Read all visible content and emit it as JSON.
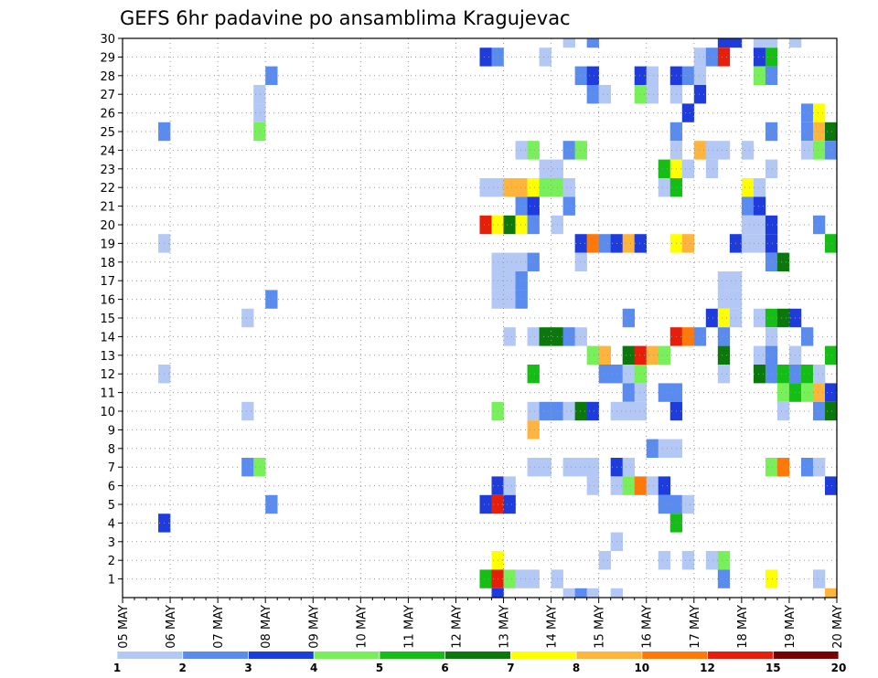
{
  "chart_data": {
    "type": "heatmap",
    "title": "GEFS 6hr padavine po ansamblima Kragujevac",
    "x_tick_labels": [
      "05 MAY",
      "06 MAY",
      "07 MAY",
      "08 MAY",
      "09 MAY",
      "10 MAY",
      "11 MAY",
      "12 MAY",
      "13 MAY",
      "14 MAY",
      "15 MAY",
      "16 MAY",
      "17 MAY",
      "18 MAY",
      "19 MAY",
      "20 MAY"
    ],
    "x_step": "6hr",
    "x_columns": 60,
    "y_tick_labels": [
      "1",
      "2",
      "3",
      "4",
      "5",
      "6",
      "7",
      "8",
      "9",
      "10",
      "11",
      "12",
      "13",
      "14",
      "15",
      "16",
      "17",
      "18",
      "19",
      "20",
      "21",
      "22",
      "23",
      "24",
      "25",
      "26",
      "27",
      "28",
      "29",
      "30"
    ],
    "ylim": [
      0,
      30
    ],
    "grid": true,
    "legend": {
      "placement": "bottom",
      "boundaries": [
        "1",
        "2",
        "3",
        "4",
        "5",
        "6",
        "7",
        "8",
        "10",
        "12",
        "15",
        "20"
      ],
      "colors": [
        "#b4c8f5",
        "#5a8cf0",
        "#1e3cdc",
        "#78f05a",
        "#14be14",
        "#0a780a",
        "#ffff00",
        "#ffb43c",
        "#ff780a",
        "#e61e0a",
        "#780000"
      ]
    },
    "cells": [
      {
        "m": 30,
        "c": [
          [
            37,
            1
          ],
          [
            39,
            2
          ],
          [
            50,
            3
          ],
          [
            51,
            3
          ],
          [
            53,
            1
          ],
          [
            54,
            1
          ],
          [
            56,
            1
          ]
        ]
      },
      {
        "m": 29,
        "c": [
          [
            30,
            3
          ],
          [
            31,
            2
          ],
          [
            35,
            1
          ],
          [
            48,
            1
          ],
          [
            49,
            2
          ],
          [
            50,
            10
          ],
          [
            53,
            3
          ],
          [
            54,
            5
          ]
        ]
      },
      {
        "m": 28,
        "c": [
          [
            12,
            2
          ],
          [
            38,
            2
          ],
          [
            39,
            3
          ],
          [
            43,
            3
          ],
          [
            44,
            1
          ],
          [
            46,
            3
          ],
          [
            47,
            2
          ],
          [
            48,
            1
          ],
          [
            53,
            4
          ],
          [
            54,
            2
          ]
        ]
      },
      {
        "m": 27,
        "c": [
          [
            11,
            1
          ],
          [
            39,
            2
          ],
          [
            40,
            1
          ],
          [
            43,
            4
          ],
          [
            44,
            1
          ],
          [
            46,
            1
          ],
          [
            48,
            3
          ]
        ]
      },
      {
        "m": 26,
        "c": [
          [
            11,
            1
          ],
          [
            47,
            3
          ],
          [
            57,
            2
          ],
          [
            58,
            7
          ]
        ]
      },
      {
        "m": 25,
        "c": [
          [
            3,
            2
          ],
          [
            11,
            4
          ],
          [
            46,
            2
          ],
          [
            54,
            2
          ],
          [
            57,
            2
          ],
          [
            58,
            8
          ],
          [
            59,
            6
          ]
        ]
      },
      {
        "m": 24,
        "c": [
          [
            33,
            1
          ],
          [
            34,
            4
          ],
          [
            37,
            2
          ],
          [
            38,
            4
          ],
          [
            46,
            1
          ],
          [
            48,
            8
          ],
          [
            49,
            1
          ],
          [
            50,
            1
          ],
          [
            52,
            1
          ],
          [
            57,
            1
          ],
          [
            58,
            4
          ],
          [
            59,
            2
          ]
        ]
      },
      {
        "m": 23,
        "c": [
          [
            35,
            1
          ],
          [
            36,
            1
          ],
          [
            45,
            5
          ],
          [
            46,
            7
          ],
          [
            47,
            1
          ],
          [
            49,
            1
          ],
          [
            54,
            1
          ]
        ]
      },
      {
        "m": 22,
        "c": [
          [
            30,
            1
          ],
          [
            31,
            1
          ],
          [
            32,
            8
          ],
          [
            33,
            8
          ],
          [
            34,
            7
          ],
          [
            35,
            4
          ],
          [
            36,
            4
          ],
          [
            37,
            1
          ],
          [
            45,
            1
          ],
          [
            46,
            5
          ],
          [
            52,
            7
          ],
          [
            53,
            1
          ]
        ]
      },
      {
        "m": 21,
        "c": [
          [
            33,
            2
          ],
          [
            34,
            3
          ],
          [
            37,
            2
          ],
          [
            52,
            2
          ],
          [
            53,
            3
          ]
        ]
      },
      {
        "m": 20,
        "c": [
          [
            30,
            10
          ],
          [
            31,
            7
          ],
          [
            32,
            6
          ],
          [
            33,
            7
          ],
          [
            34,
            2
          ],
          [
            36,
            1
          ],
          [
            52,
            1
          ],
          [
            53,
            1
          ],
          [
            54,
            3
          ],
          [
            58,
            2
          ]
        ]
      },
      {
        "m": 19,
        "c": [
          [
            3,
            1
          ],
          [
            38,
            3
          ],
          [
            39,
            9
          ],
          [
            40,
            2
          ],
          [
            41,
            3
          ],
          [
            42,
            8
          ],
          [
            43,
            3
          ],
          [
            46,
            7
          ],
          [
            47,
            8
          ],
          [
            51,
            3
          ],
          [
            52,
            1
          ],
          [
            53,
            1
          ],
          [
            54,
            3
          ],
          [
            59,
            5
          ]
        ]
      },
      {
        "m": 18,
        "c": [
          [
            31,
            1
          ],
          [
            32,
            1
          ],
          [
            33,
            1
          ],
          [
            34,
            2
          ],
          [
            38,
            1
          ],
          [
            54,
            2
          ],
          [
            55,
            6
          ]
        ]
      },
      {
        "m": 17,
        "c": [
          [
            31,
            1
          ],
          [
            32,
            1
          ],
          [
            33,
            2
          ],
          [
            50,
            1
          ],
          [
            51,
            1
          ]
        ]
      },
      {
        "m": 16,
        "c": [
          [
            12,
            2
          ],
          [
            31,
            1
          ],
          [
            32,
            1
          ],
          [
            33,
            2
          ],
          [
            50,
            1
          ],
          [
            51,
            1
          ]
        ]
      },
      {
        "m": 15,
        "c": [
          [
            10,
            1
          ],
          [
            42,
            2
          ],
          [
            49,
            3
          ],
          [
            50,
            7
          ],
          [
            51,
            1
          ],
          [
            53,
            1
          ],
          [
            54,
            5
          ],
          [
            55,
            6
          ],
          [
            56,
            3
          ]
        ]
      },
      {
        "m": 14,
        "c": [
          [
            32,
            1
          ],
          [
            34,
            1
          ],
          [
            35,
            6
          ],
          [
            36,
            6
          ],
          [
            37,
            2
          ],
          [
            38,
            1
          ],
          [
            46,
            10
          ],
          [
            47,
            9
          ],
          [
            48,
            2
          ],
          [
            50,
            2
          ],
          [
            54,
            1
          ],
          [
            57,
            2
          ]
        ]
      },
      {
        "m": 13,
        "c": [
          [
            39,
            4
          ],
          [
            40,
            8
          ],
          [
            42,
            6
          ],
          [
            43,
            10
          ],
          [
            44,
            8
          ],
          [
            45,
            4
          ],
          [
            50,
            6
          ],
          [
            53,
            1
          ],
          [
            54,
            2
          ],
          [
            56,
            1
          ],
          [
            59,
            5
          ]
        ]
      },
      {
        "m": 12,
        "c": [
          [
            3,
            1
          ],
          [
            34,
            5
          ],
          [
            40,
            2
          ],
          [
            41,
            2
          ],
          [
            42,
            1
          ],
          [
            43,
            4
          ],
          [
            50,
            1
          ],
          [
            53,
            6
          ],
          [
            54,
            2
          ],
          [
            55,
            5
          ],
          [
            56,
            2
          ],
          [
            57,
            5
          ],
          [
            58,
            1
          ]
        ]
      },
      {
        "m": 11,
        "c": [
          [
            42,
            2
          ],
          [
            43,
            1
          ],
          [
            45,
            2
          ],
          [
            46,
            2
          ],
          [
            55,
            4
          ],
          [
            56,
            5
          ],
          [
            57,
            4
          ],
          [
            58,
            8
          ],
          [
            59,
            3
          ]
        ]
      },
      {
        "m": 10,
        "c": [
          [
            10,
            1
          ],
          [
            31,
            4
          ],
          [
            34,
            1
          ],
          [
            35,
            2
          ],
          [
            36,
            2
          ],
          [
            37,
            1
          ],
          [
            38,
            6
          ],
          [
            39,
            3
          ],
          [
            41,
            1
          ],
          [
            42,
            1
          ],
          [
            43,
            1
          ],
          [
            46,
            3
          ],
          [
            55,
            1
          ],
          [
            58,
            2
          ],
          [
            59,
            6
          ]
        ]
      },
      {
        "m": 9,
        "c": [
          [
            34,
            8
          ]
        ]
      },
      {
        "m": 8,
        "c": [
          [
            44,
            2
          ],
          [
            45,
            1
          ],
          [
            46,
            1
          ]
        ]
      },
      {
        "m": 7,
        "c": [
          [
            10,
            2
          ],
          [
            11,
            4
          ],
          [
            34,
            1
          ],
          [
            35,
            1
          ],
          [
            37,
            1
          ],
          [
            38,
            1
          ],
          [
            39,
            1
          ],
          [
            41,
            3
          ],
          [
            42,
            1
          ],
          [
            54,
            4
          ],
          [
            55,
            9
          ],
          [
            57,
            2
          ],
          [
            58,
            1
          ]
        ]
      },
      {
        "m": 6,
        "c": [
          [
            31,
            3
          ],
          [
            32,
            1
          ],
          [
            39,
            1
          ],
          [
            41,
            1
          ],
          [
            42,
            4
          ],
          [
            43,
            9
          ],
          [
            44,
            1
          ],
          [
            45,
            3
          ],
          [
            59,
            3
          ]
        ]
      },
      {
        "m": 5,
        "c": [
          [
            12,
            2
          ],
          [
            30,
            3
          ],
          [
            31,
            10
          ],
          [
            32,
            3
          ],
          [
            45,
            2
          ],
          [
            46,
            2
          ],
          [
            47,
            1
          ]
        ]
      },
      {
        "m": 4,
        "c": [
          [
            3,
            3
          ],
          [
            46,
            5
          ]
        ]
      },
      {
        "m": 3,
        "c": [
          [
            41,
            1
          ]
        ]
      },
      {
        "m": 2,
        "c": [
          [
            31,
            7
          ],
          [
            40,
            1
          ],
          [
            45,
            1
          ],
          [
            47,
            1
          ],
          [
            49,
            1
          ],
          [
            50,
            4
          ]
        ]
      },
      {
        "m": 1,
        "c": [
          [
            30,
            5
          ],
          [
            31,
            10
          ],
          [
            32,
            4
          ],
          [
            33,
            1
          ],
          [
            34,
            1
          ],
          [
            36,
            1
          ],
          [
            50,
            2
          ],
          [
            54,
            7
          ],
          [
            58,
            1
          ]
        ]
      },
      {
        "m": 0,
        "c": [
          [
            31,
            3
          ],
          [
            37,
            1
          ],
          [
            38,
            2
          ],
          [
            39,
            1
          ],
          [
            41,
            1
          ],
          [
            59,
            8
          ]
        ]
      }
    ]
  }
}
